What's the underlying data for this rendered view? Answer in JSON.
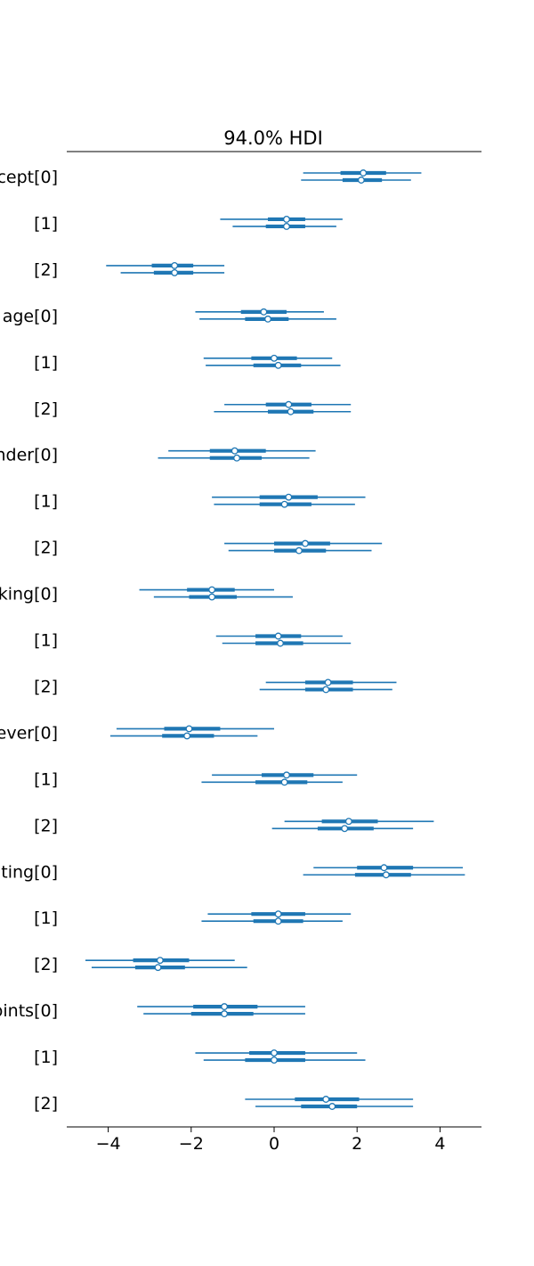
{
  "chart_data": {
    "type": "forest",
    "title": "94.0% HDI",
    "xlim": [
      -5.0,
      5.0
    ],
    "x_ticks": [
      -4,
      -2,
      0,
      2,
      4
    ],
    "x_tick_labels": [
      "−4",
      "−2",
      "0",
      "2",
      "4"
    ],
    "grid": false,
    "colors": {
      "line": "#1f77b4",
      "marker_face": "#ffffff"
    },
    "rows": [
      {
        "label": "cept[0]",
        "chains": [
          {
            "median": 2.15,
            "iqr": [
              1.6,
              2.7
            ],
            "hdi": [
              0.7,
              3.55
            ]
          },
          {
            "median": 2.1,
            "iqr": [
              1.65,
              2.6
            ],
            "hdi": [
              0.65,
              3.3
            ]
          }
        ]
      },
      {
        "label": "[1]",
        "chains": [
          {
            "median": 0.3,
            "iqr": [
              -0.15,
              0.75
            ],
            "hdi": [
              -1.3,
              1.65
            ]
          },
          {
            "median": 0.3,
            "iqr": [
              -0.2,
              0.75
            ],
            "hdi": [
              -1.0,
              1.5
            ]
          }
        ]
      },
      {
        "label": "[2]",
        "chains": [
          {
            "median": -2.4,
            "iqr": [
              -2.95,
              -1.95
            ],
            "hdi": [
              -4.05,
              -1.2
            ]
          },
          {
            "median": -2.4,
            "iqr": [
              -2.9,
              -1.95
            ],
            "hdi": [
              -3.7,
              -1.2
            ]
          }
        ]
      },
      {
        "label": "age[0]",
        "chains": [
          {
            "median": -0.25,
            "iqr": [
              -0.8,
              0.3
            ],
            "hdi": [
              -1.9,
              1.2
            ]
          },
          {
            "median": -0.15,
            "iqr": [
              -0.7,
              0.35
            ],
            "hdi": [
              -1.8,
              1.5
            ]
          }
        ]
      },
      {
        "label": "[1]",
        "chains": [
          {
            "median": 0.0,
            "iqr": [
              -0.55,
              0.55
            ],
            "hdi": [
              -1.7,
              1.4
            ]
          },
          {
            "median": 0.1,
            "iqr": [
              -0.5,
              0.65
            ],
            "hdi": [
              -1.65,
              1.6
            ]
          }
        ]
      },
      {
        "label": "[2]",
        "chains": [
          {
            "median": 0.35,
            "iqr": [
              -0.2,
              0.9
            ],
            "hdi": [
              -1.2,
              1.85
            ]
          },
          {
            "median": 0.4,
            "iqr": [
              -0.15,
              0.95
            ],
            "hdi": [
              -1.45,
              1.85
            ]
          }
        ]
      },
      {
        "label": "nder[0]",
        "chains": [
          {
            "median": -0.95,
            "iqr": [
              -1.55,
              -0.2
            ],
            "hdi": [
              -2.55,
              1.0
            ]
          },
          {
            "median": -0.9,
            "iqr": [
              -1.55,
              -0.3
            ],
            "hdi": [
              -2.8,
              0.85
            ]
          }
        ]
      },
      {
        "label": "[1]",
        "chains": [
          {
            "median": 0.35,
            "iqr": [
              -0.35,
              1.05
            ],
            "hdi": [
              -1.5,
              2.2
            ]
          },
          {
            "median": 0.25,
            "iqr": [
              -0.35,
              0.9
            ],
            "hdi": [
              -1.45,
              1.95
            ]
          }
        ]
      },
      {
        "label": "[2]",
        "chains": [
          {
            "median": 0.75,
            "iqr": [
              0.0,
              1.35
            ],
            "hdi": [
              -1.2,
              2.6
            ]
          },
          {
            "median": 0.6,
            "iqr": [
              0.0,
              1.25
            ],
            "hdi": [
              -1.1,
              2.35
            ]
          }
        ]
      },
      {
        "label": "king[0]",
        "chains": [
          {
            "median": -1.5,
            "iqr": [
              -2.1,
              -0.95
            ],
            "hdi": [
              -3.25,
              0.0
            ]
          },
          {
            "median": -1.5,
            "iqr": [
              -2.05,
              -0.9
            ],
            "hdi": [
              -2.9,
              0.45
            ]
          }
        ]
      },
      {
        "label": "[1]",
        "chains": [
          {
            "median": 0.1,
            "iqr": [
              -0.45,
              0.65
            ],
            "hdi": [
              -1.4,
              1.65
            ]
          },
          {
            "median": 0.15,
            "iqr": [
              -0.45,
              0.7
            ],
            "hdi": [
              -1.25,
              1.85
            ]
          }
        ]
      },
      {
        "label": "[2]",
        "chains": [
          {
            "median": 1.3,
            "iqr": [
              0.75,
              1.9
            ],
            "hdi": [
              -0.2,
              2.95
            ]
          },
          {
            "median": 1.25,
            "iqr": [
              0.75,
              1.9
            ],
            "hdi": [
              -0.35,
              2.85
            ]
          }
        ]
      },
      {
        "label": "ever[0]",
        "chains": [
          {
            "median": -2.05,
            "iqr": [
              -2.65,
              -1.3
            ],
            "hdi": [
              -3.8,
              0.0
            ]
          },
          {
            "median": -2.1,
            "iqr": [
              -2.7,
              -1.45
            ],
            "hdi": [
              -3.95,
              -0.4
            ]
          }
        ]
      },
      {
        "label": "[1]",
        "chains": [
          {
            "median": 0.3,
            "iqr": [
              -0.3,
              0.95
            ],
            "hdi": [
              -1.5,
              2.0
            ]
          },
          {
            "median": 0.25,
            "iqr": [
              -0.45,
              0.8
            ],
            "hdi": [
              -1.75,
              1.65
            ]
          }
        ]
      },
      {
        "label": "[2]",
        "chains": [
          {
            "median": 1.8,
            "iqr": [
              1.15,
              2.5
            ],
            "hdi": [
              0.25,
              3.85
            ]
          },
          {
            "median": 1.7,
            "iqr": [
              1.05,
              2.4
            ],
            "hdi": [
              -0.05,
              3.35
            ]
          }
        ]
      },
      {
        "label": "ting[0]",
        "chains": [
          {
            "median": 2.65,
            "iqr": [
              2.0,
              3.35
            ],
            "hdi": [
              0.95,
              4.55
            ]
          },
          {
            "median": 2.7,
            "iqr": [
              1.95,
              3.3
            ],
            "hdi": [
              0.7,
              4.6
            ]
          }
        ]
      },
      {
        "label": "[1]",
        "chains": [
          {
            "median": 0.1,
            "iqr": [
              -0.55,
              0.75
            ],
            "hdi": [
              -1.6,
              1.85
            ]
          },
          {
            "median": 0.1,
            "iqr": [
              -0.5,
              0.7
            ],
            "hdi": [
              -1.75,
              1.65
            ]
          }
        ]
      },
      {
        "label": "[2]",
        "chains": [
          {
            "median": -2.75,
            "iqr": [
              -3.4,
              -2.05
            ],
            "hdi": [
              -4.55,
              -0.95
            ]
          },
          {
            "median": -2.8,
            "iqr": [
              -3.35,
              -2.15
            ],
            "hdi": [
              -4.4,
              -0.65
            ]
          }
        ]
      },
      {
        "label": "oints[0]",
        "chains": [
          {
            "median": -1.2,
            "iqr": [
              -1.95,
              -0.4
            ],
            "hdi": [
              -3.3,
              0.75
            ]
          },
          {
            "median": -1.2,
            "iqr": [
              -2.0,
              -0.5
            ],
            "hdi": [
              -3.15,
              0.75
            ]
          }
        ]
      },
      {
        "label": "[1]",
        "chains": [
          {
            "median": 0.0,
            "iqr": [
              -0.6,
              0.75
            ],
            "hdi": [
              -1.9,
              2.0
            ]
          },
          {
            "median": 0.0,
            "iqr": [
              -0.7,
              0.75
            ],
            "hdi": [
              -1.7,
              2.2
            ]
          }
        ]
      },
      {
        "label": "[2]",
        "chains": [
          {
            "median": 1.25,
            "iqr": [
              0.5,
              2.05
            ],
            "hdi": [
              -0.7,
              3.35
            ]
          },
          {
            "median": 1.4,
            "iqr": [
              0.65,
              2.0
            ],
            "hdi": [
              -0.45,
              3.35
            ]
          }
        ]
      }
    ]
  }
}
